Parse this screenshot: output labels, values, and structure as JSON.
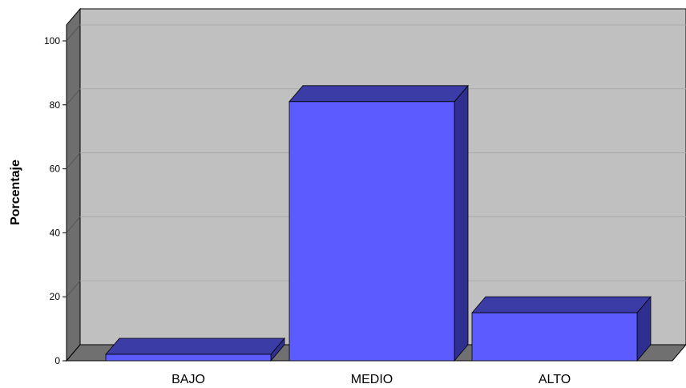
{
  "chart_data": {
    "type": "bar",
    "title": "",
    "xlabel": "",
    "ylabel": "Porcentaje",
    "categories": [
      "BAJO",
      "MEDIO",
      "ALTO"
    ],
    "values": [
      2,
      81,
      15
    ],
    "ylim": [
      0,
      100
    ],
    "yticks": [
      "0",
      "20",
      "40",
      "60",
      "80",
      "100"
    ],
    "grid": true,
    "legend": "none",
    "style": "3d",
    "colors": {
      "bar_front": "#5b5bff",
      "bar_top": "#3c3ca6",
      "bar_side": "#2f2f8f",
      "wall_back": "#c0c0c0",
      "wall_left": "#6e6e6e",
      "floor": "#707070",
      "gridline": "#a9a9a9"
    }
  }
}
